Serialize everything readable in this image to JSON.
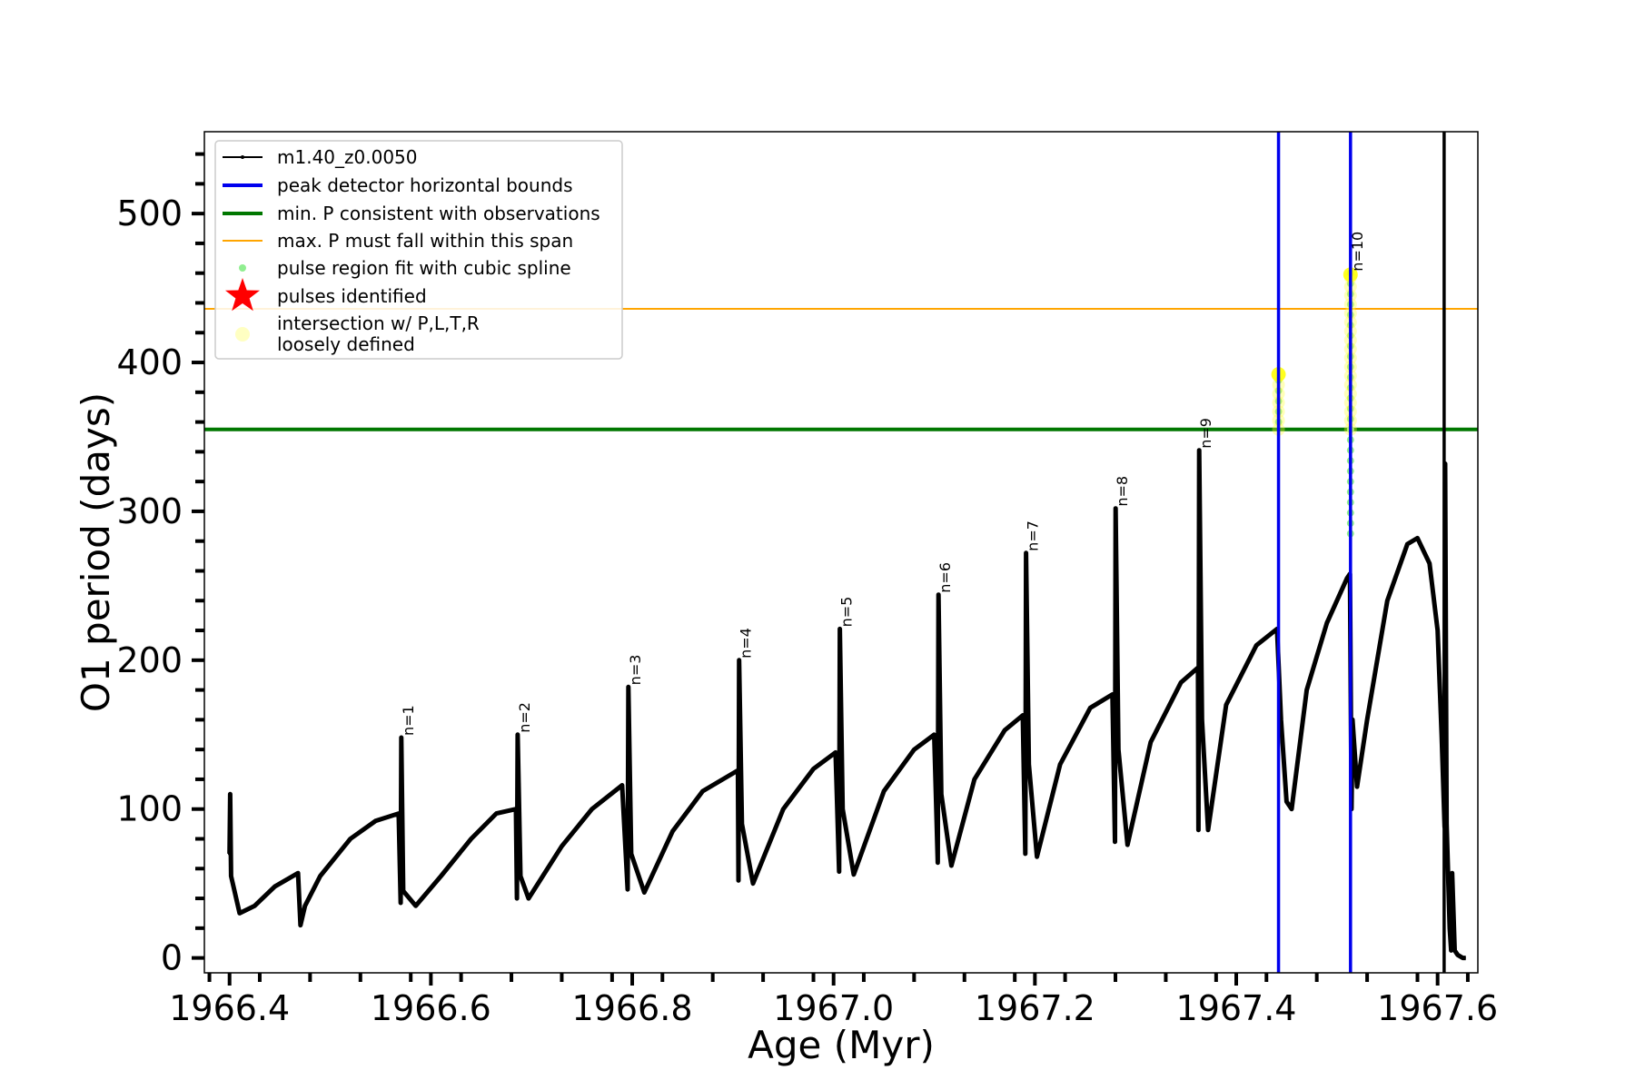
{
  "chart_data": {
    "type": "line",
    "xlabel": "Age (Myr)",
    "ylabel": "O1 period (days)",
    "xlim": [
      1966.375,
      1967.64
    ],
    "ylim": [
      -10,
      555
    ],
    "x_ticks": [
      "1966.4",
      "1966.6",
      "1966.8",
      "1967.0",
      "1967.2",
      "1967.4",
      "1967.6"
    ],
    "y_ticks": [
      "0",
      "100",
      "200",
      "300",
      "400",
      "500"
    ],
    "legend_position": "upper-left",
    "legend": [
      {
        "label": "m1.40_z0.0050",
        "kind": "line-marker",
        "color": "#000000"
      },
      {
        "label": "peak detector horizontal bounds",
        "kind": "line",
        "color": "#0000ee"
      },
      {
        "label": "min. P consistent with observations",
        "kind": "line",
        "color": "#007700"
      },
      {
        "label": "max. P must fall within this span",
        "kind": "line",
        "color": "#ffa500"
      },
      {
        "label": "pulse region fit with cubic spline",
        "kind": "dot",
        "color": "#90ee90"
      },
      {
        "label": "pulses identified",
        "kind": "star",
        "color": "#ff0000"
      },
      {
        "label": "intersection w/ P,L,T,R",
        "label2": "loosely defined",
        "kind": "big-dot",
        "color": "#ffff99"
      }
    ],
    "series": [
      {
        "name": "m1.40_z0.0050",
        "color": "#000000",
        "anchors": [
          [
            1966.4,
            70
          ],
          [
            1966.4006,
            110
          ],
          [
            1966.4015,
            55
          ],
          [
            1966.41,
            30
          ],
          [
            1966.425,
            35
          ],
          [
            1966.445,
            48
          ],
          [
            1966.468,
            57
          ],
          [
            1966.4705,
            22
          ],
          [
            1966.475,
            35
          ],
          [
            1966.49,
            55
          ],
          [
            1966.52,
            80
          ],
          [
            1966.545,
            92
          ],
          [
            1966.568,
            97
          ],
          [
            1966.57,
            37
          ],
          [
            1966.5706,
            148
          ],
          [
            1966.5725,
            45
          ],
          [
            1966.585,
            35
          ],
          [
            1966.61,
            55
          ],
          [
            1966.64,
            80
          ],
          [
            1966.665,
            97
          ],
          [
            1966.6845,
            100
          ],
          [
            1966.6855,
            40
          ],
          [
            1966.6862,
            150
          ],
          [
            1966.689,
            55
          ],
          [
            1966.697,
            40
          ],
          [
            1966.73,
            75
          ],
          [
            1966.76,
            100
          ],
          [
            1966.79,
            116
          ],
          [
            1966.7955,
            46
          ],
          [
            1966.7962,
            182
          ],
          [
            1966.799,
            70
          ],
          [
            1966.812,
            44
          ],
          [
            1966.84,
            85
          ],
          [
            1966.87,
            112
          ],
          [
            1966.905,
            126
          ],
          [
            1966.9055,
            52
          ],
          [
            1966.9062,
            200
          ],
          [
            1966.909,
            90
          ],
          [
            1966.92,
            50
          ],
          [
            1966.95,
            100
          ],
          [
            1966.98,
            127
          ],
          [
            1967.002,
            138
          ],
          [
            1967.0055,
            58
          ],
          [
            1967.0062,
            221
          ],
          [
            1967.009,
            100
          ],
          [
            1967.02,
            56
          ],
          [
            1967.05,
            112
          ],
          [
            1967.08,
            140
          ],
          [
            1967.1,
            150
          ],
          [
            1967.1035,
            64
          ],
          [
            1967.1042,
            244
          ],
          [
            1967.107,
            110
          ],
          [
            1967.117,
            62
          ],
          [
            1967.14,
            120
          ],
          [
            1967.17,
            153
          ],
          [
            1967.188,
            163
          ],
          [
            1967.1905,
            70
          ],
          [
            1967.1912,
            272
          ],
          [
            1967.194,
            130
          ],
          [
            1967.202,
            68
          ],
          [
            1967.225,
            130
          ],
          [
            1967.255,
            168
          ],
          [
            1967.277,
            177
          ],
          [
            1967.2795,
            78
          ],
          [
            1967.2802,
            302
          ],
          [
            1967.283,
            140
          ],
          [
            1967.292,
            76
          ],
          [
            1967.315,
            145
          ],
          [
            1967.345,
            185
          ],
          [
            1967.362,
            195
          ],
          [
            1967.3625,
            86
          ],
          [
            1967.3632,
            341
          ],
          [
            1967.366,
            160
          ],
          [
            1967.372,
            86
          ],
          [
            1967.39,
            170
          ],
          [
            1967.42,
            210
          ],
          [
            1967.4405,
            221
          ],
          [
            1967.4445,
            160
          ],
          [
            1967.45,
            105
          ],
          [
            1967.455,
            100
          ],
          [
            1967.47,
            180
          ],
          [
            1967.49,
            225
          ],
          [
            1967.51,
            255
          ],
          [
            1967.513,
            258
          ],
          [
            1967.5145,
            100
          ],
          [
            1967.5155,
            160
          ],
          [
            1967.52,
            115
          ],
          [
            1967.53,
            160
          ],
          [
            1967.55,
            240
          ],
          [
            1967.57,
            278
          ],
          [
            1967.58,
            282
          ],
          [
            1967.592,
            265
          ],
          [
            1967.6,
            220
          ],
          [
            1967.604,
            150
          ],
          [
            1967.607,
            88
          ],
          [
            1967.6075,
            332
          ],
          [
            1967.609,
            90
          ],
          [
            1967.612,
            20
          ],
          [
            1967.6135,
            5
          ],
          [
            1967.6145,
            57
          ],
          [
            1967.617,
            5
          ],
          [
            1967.62,
            2
          ],
          [
            1967.625,
            0
          ],
          [
            1967.628,
            0
          ]
        ]
      }
    ],
    "horizontal_lines": [
      {
        "label": "min. P consistent with observations",
        "y": 355,
        "color": "#007700"
      },
      {
        "label": "max. P must fall within this span",
        "y": 436,
        "color": "#ffa500"
      }
    ],
    "vertical_lines": [
      {
        "label": "peak detector horizontal bounds",
        "x": 1967.442,
        "color": "#0000ee"
      },
      {
        "label": "peak detector horizontal bounds",
        "x": 1967.5135,
        "color": "#0000ee"
      },
      {
        "label": "m1.40_z0.0050",
        "x": 1967.6065,
        "color": "#000000"
      }
    ],
    "pulse_labels": [
      {
        "text": "n=1",
        "x": 1966.5706,
        "y": 148
      },
      {
        "text": "n=2",
        "x": 1966.6862,
        "y": 150
      },
      {
        "text": "n=3",
        "x": 1966.7962,
        "y": 182
      },
      {
        "text": "n=4",
        "x": 1966.9062,
        "y": 200
      },
      {
        "text": "n=5",
        "x": 1967.0062,
        "y": 221
      },
      {
        "text": "n=6",
        "x": 1967.1042,
        "y": 244
      },
      {
        "text": "n=7",
        "x": 1967.1912,
        "y": 272
      },
      {
        "text": "n=8",
        "x": 1967.2802,
        "y": 302
      },
      {
        "text": "n=9",
        "x": 1967.3632,
        "y": 341
      },
      {
        "text": "n=10",
        "x": 1967.5135,
        "y": 460
      }
    ],
    "spline_points": [
      {
        "x": 1967.5135,
        "y_from": 285,
        "y_to": 460
      },
      {
        "x": 1967.442,
        "y_from": 360,
        "y_to": 392
      }
    ],
    "intersection_points": [
      {
        "x": 1967.442,
        "y_from": 355,
        "y_to": 395
      },
      {
        "x": 1967.5135,
        "y_from": 355,
        "y_to": 462
      }
    ]
  }
}
